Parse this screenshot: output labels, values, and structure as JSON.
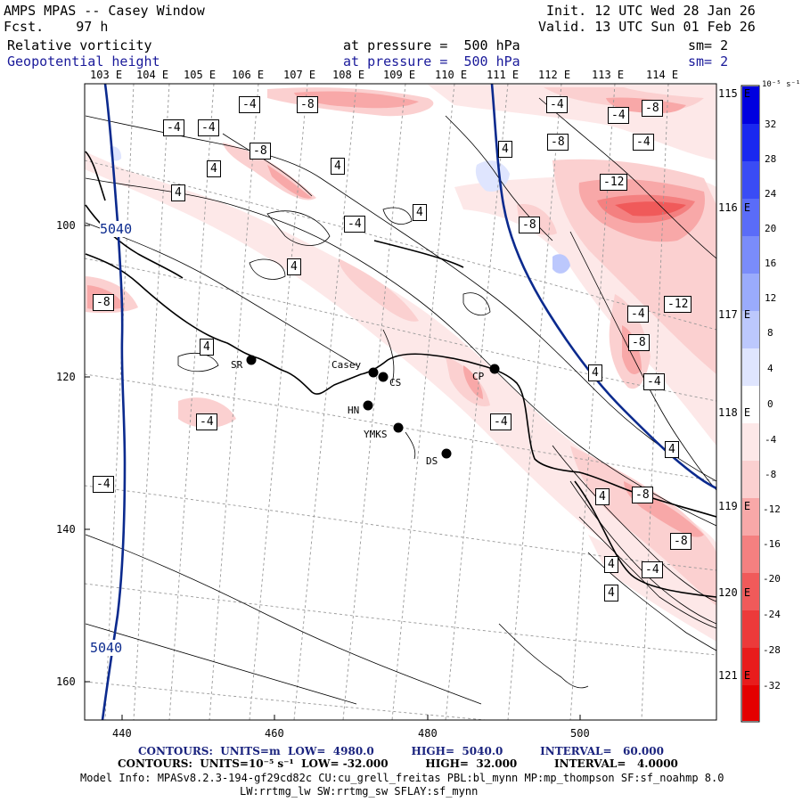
{
  "header": {
    "title": "AMPS MPAS -- Casey Window",
    "forecast": "Fcst.    97 h",
    "init": "Init. 12 UTC Wed 28 Jan 26",
    "valid": "Valid. 13 UTC Sun 01 Feb 26",
    "field1_name": "Relative vorticity",
    "field1_level": "at pressure =  500 hPa",
    "field1_smooth": "sm= 2",
    "field2_name": "Geopotential height",
    "field2_level": "at pressure =  500 hPa",
    "field2_smooth": "sm= 2"
  },
  "lon_labels_top": [
    "103 E",
    "104 E",
    "105 E",
    "106 E",
    "107 E",
    "108 E",
    "109 E",
    "110 E",
    "111 E",
    "112 E",
    "113 E",
    "114 E"
  ],
  "lon_labels_right": [
    "115 E",
    "116 E",
    "117 E",
    "118 E",
    "119 E",
    "120 E",
    "121 E"
  ],
  "y_ticks": [
    "100",
    "120",
    "140",
    "160"
  ],
  "x_ticks": [
    "440",
    "460",
    "480",
    "500"
  ],
  "colorbar": {
    "unit": "10⁻⁵ s⁻¹",
    "labels": [
      "32",
      "28",
      "24",
      "20",
      "16",
      "12",
      "8",
      "4",
      "0",
      "-4",
      "-8",
      "-12",
      "-16",
      "-20",
      "-24",
      "-28",
      "-32"
    ],
    "colors": [
      "#0000e0",
      "#1a28f0",
      "#3a4cf5",
      "#5a6cf8",
      "#7a8cfa",
      "#9aabfc",
      "#bcc8fd",
      "#dfe5fe",
      "#ffffff",
      "#fde8e8",
      "#fbd0d0",
      "#f8a8a8",
      "#f48080",
      "#f05a5a",
      "#ec3a3a",
      "#e81c1c",
      "#e40000"
    ]
  },
  "stations": [
    {
      "name": "SR"
    },
    {
      "name": "Casey"
    },
    {
      "name": "CS"
    },
    {
      "name": "HN"
    },
    {
      "name": "YMKS"
    },
    {
      "name": "DS"
    },
    {
      "name": "CP"
    }
  ],
  "contour_labels": [
    "-4",
    "-8",
    "-4",
    "-4",
    "-4",
    "-8",
    "4",
    "4",
    "4",
    "-4",
    "4",
    "-8",
    "-4",
    "-8",
    "-4",
    "-8",
    "-12",
    "4",
    "4",
    "-8",
    "-8",
    "-4",
    "-12",
    "-4",
    "-8",
    "4",
    "-4",
    "4",
    "-4",
    "4",
    "-8",
    "4",
    "-4",
    "4",
    "-4",
    "4"
  ],
  "height_labels": [
    "5040",
    "5040"
  ],
  "footer": {
    "line1": "CONTOURS:  UNITS=m  LOW=  4980.0          HIGH=  5040.0          INTERVAL=   60.000",
    "line2": "CONTOURS:  UNITS=10⁻⁵ s⁻¹  LOW= -32.000          HIGH=  32.000          INTERVAL=   4.0000",
    "line3": "Model Info: MPASv8.2.3-194-gf29cd82c CU:cu_grell_freitas PBL:bl_mynn MP:mp_thompson SF:sf_noahmp 8.0",
    "line4": "LW:rrtmg_lw SW:rrtmg_sw SFLAY:sf_mynn"
  }
}
